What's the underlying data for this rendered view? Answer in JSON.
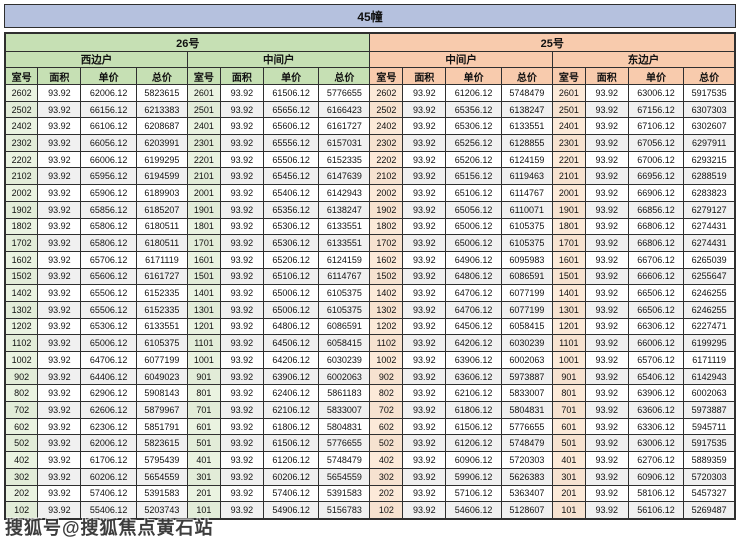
{
  "title": "45幢",
  "watermark": "搜狐号@搜狐焦点黄石站",
  "colors": {
    "title_bar": "#b5c1de",
    "group_26_header": "#c6e0b4",
    "group_25_header": "#f8cbad",
    "room_col_26_tint": "#eaf3e1",
    "room_col_25_tint": "#fcead9",
    "stripe_row": "#f0f0f0",
    "border": "#2f2f2f"
  },
  "groups": [
    {
      "building": "26号",
      "theme": "green",
      "units": [
        "西边户",
        "中间户"
      ]
    },
    {
      "building": "25号",
      "theme": "orange",
      "units": [
        "中间户",
        "东边户"
      ]
    }
  ],
  "column_headers": [
    "室号",
    "面积",
    "单价",
    "总价"
  ],
  "rows": [
    [
      "2602",
      "93.92",
      "62006.12",
      "5823615",
      "2601",
      "93.92",
      "61506.12",
      "5776655",
      "2602",
      "93.92",
      "61206.12",
      "5748479",
      "2601",
      "93.92",
      "63006.12",
      "5917535"
    ],
    [
      "2502",
      "93.92",
      "66156.12",
      "6213383",
      "2501",
      "93.92",
      "65656.12",
      "6166423",
      "2502",
      "93.92",
      "65356.12",
      "6138247",
      "2501",
      "93.92",
      "67156.12",
      "6307303"
    ],
    [
      "2402",
      "93.92",
      "66106.12",
      "6208687",
      "2401",
      "93.92",
      "65606.12",
      "6161727",
      "2402",
      "93.92",
      "65306.12",
      "6133551",
      "2401",
      "93.92",
      "67106.12",
      "6302607"
    ],
    [
      "2302",
      "93.92",
      "66056.12",
      "6203991",
      "2301",
      "93.92",
      "65556.12",
      "6157031",
      "2302",
      "93.92",
      "65256.12",
      "6128855",
      "2301",
      "93.92",
      "67056.12",
      "6297911"
    ],
    [
      "2202",
      "93.92",
      "66006.12",
      "6199295",
      "2201",
      "93.92",
      "65506.12",
      "6152335",
      "2202",
      "93.92",
      "65206.12",
      "6124159",
      "2201",
      "93.92",
      "67006.12",
      "6293215"
    ],
    [
      "2102",
      "93.92",
      "65956.12",
      "6194599",
      "2101",
      "93.92",
      "65456.12",
      "6147639",
      "2102",
      "93.92",
      "65156.12",
      "6119463",
      "2101",
      "93.92",
      "66956.12",
      "6288519"
    ],
    [
      "2002",
      "93.92",
      "65906.12",
      "6189903",
      "2001",
      "93.92",
      "65406.12",
      "6142943",
      "2002",
      "93.92",
      "65106.12",
      "6114767",
      "2001",
      "93.92",
      "66906.12",
      "6283823"
    ],
    [
      "1902",
      "93.92",
      "65856.12",
      "6185207",
      "1901",
      "93.92",
      "65356.12",
      "6138247",
      "1902",
      "93.92",
      "65056.12",
      "6110071",
      "1901",
      "93.92",
      "66856.12",
      "6279127"
    ],
    [
      "1802",
      "93.92",
      "65806.12",
      "6180511",
      "1801",
      "93.92",
      "65306.12",
      "6133551",
      "1802",
      "93.92",
      "65006.12",
      "6105375",
      "1801",
      "93.92",
      "66806.12",
      "6274431"
    ],
    [
      "1702",
      "93.92",
      "65806.12",
      "6180511",
      "1701",
      "93.92",
      "65306.12",
      "6133551",
      "1702",
      "93.92",
      "65006.12",
      "6105375",
      "1701",
      "93.92",
      "66806.12",
      "6274431"
    ],
    [
      "1602",
      "93.92",
      "65706.12",
      "6171119",
      "1601",
      "93.92",
      "65206.12",
      "6124159",
      "1602",
      "93.92",
      "64906.12",
      "6095983",
      "1601",
      "93.92",
      "66706.12",
      "6265039"
    ],
    [
      "1502",
      "93.92",
      "65606.12",
      "6161727",
      "1501",
      "93.92",
      "65106.12",
      "6114767",
      "1502",
      "93.92",
      "64806.12",
      "6086591",
      "1501",
      "93.92",
      "66606.12",
      "6255647"
    ],
    [
      "1402",
      "93.92",
      "65506.12",
      "6152335",
      "1401",
      "93.92",
      "65006.12",
      "6105375",
      "1402",
      "93.92",
      "64706.12",
      "6077199",
      "1401",
      "93.92",
      "66506.12",
      "6246255"
    ],
    [
      "1302",
      "93.92",
      "65506.12",
      "6152335",
      "1301",
      "93.92",
      "65006.12",
      "6105375",
      "1302",
      "93.92",
      "64706.12",
      "6077199",
      "1301",
      "93.92",
      "66506.12",
      "6246255"
    ],
    [
      "1202",
      "93.92",
      "65306.12",
      "6133551",
      "1201",
      "93.92",
      "64806.12",
      "6086591",
      "1202",
      "93.92",
      "64506.12",
      "6058415",
      "1201",
      "93.92",
      "66306.12",
      "6227471"
    ],
    [
      "1102",
      "93.92",
      "65006.12",
      "6105375",
      "1101",
      "93.92",
      "64506.12",
      "6058415",
      "1102",
      "93.92",
      "64206.12",
      "6030239",
      "1101",
      "93.92",
      "66006.12",
      "6199295"
    ],
    [
      "1002",
      "93.92",
      "64706.12",
      "6077199",
      "1001",
      "93.92",
      "64206.12",
      "6030239",
      "1002",
      "93.92",
      "63906.12",
      "6002063",
      "1001",
      "93.92",
      "65706.12",
      "6171119"
    ],
    [
      "902",
      "93.92",
      "64406.12",
      "6049023",
      "901",
      "93.92",
      "63906.12",
      "6002063",
      "902",
      "93.92",
      "63606.12",
      "5973887",
      "901",
      "93.92",
      "65406.12",
      "6142943"
    ],
    [
      "802",
      "93.92",
      "62906.12",
      "5908143",
      "801",
      "93.92",
      "62406.12",
      "5861183",
      "802",
      "93.92",
      "62106.12",
      "5833007",
      "801",
      "93.92",
      "63906.12",
      "6002063"
    ],
    [
      "702",
      "93.92",
      "62606.12",
      "5879967",
      "701",
      "93.92",
      "62106.12",
      "5833007",
      "702",
      "93.92",
      "61806.12",
      "5804831",
      "701",
      "93.92",
      "63606.12",
      "5973887"
    ],
    [
      "602",
      "93.92",
      "62306.12",
      "5851791",
      "601",
      "93.92",
      "61806.12",
      "5804831",
      "602",
      "93.92",
      "61506.12",
      "5776655",
      "601",
      "93.92",
      "63306.12",
      "5945711"
    ],
    [
      "502",
      "93.92",
      "62006.12",
      "5823615",
      "501",
      "93.92",
      "61506.12",
      "5776655",
      "502",
      "93.92",
      "61206.12",
      "5748479",
      "501",
      "93.92",
      "63006.12",
      "5917535"
    ],
    [
      "402",
      "93.92",
      "61706.12",
      "5795439",
      "401",
      "93.92",
      "61206.12",
      "5748479",
      "402",
      "93.92",
      "60906.12",
      "5720303",
      "401",
      "93.92",
      "62706.12",
      "5889359"
    ],
    [
      "302",
      "93.92",
      "60206.12",
      "5654559",
      "301",
      "93.92",
      "60206.12",
      "5654559",
      "302",
      "93.92",
      "59906.12",
      "5626383",
      "301",
      "93.92",
      "60906.12",
      "5720303"
    ],
    [
      "202",
      "93.92",
      "57406.12",
      "5391583",
      "201",
      "93.92",
      "57406.12",
      "5391583",
      "202",
      "93.92",
      "57106.12",
      "5363407",
      "201",
      "93.92",
      "58106.12",
      "5457327"
    ],
    [
      "102",
      "93.92",
      "55406.12",
      "5203743",
      "101",
      "93.92",
      "54906.12",
      "5156783",
      "102",
      "93.92",
      "54606.12",
      "5128607",
      "101",
      "93.92",
      "56106.12",
      "5269487"
    ]
  ]
}
